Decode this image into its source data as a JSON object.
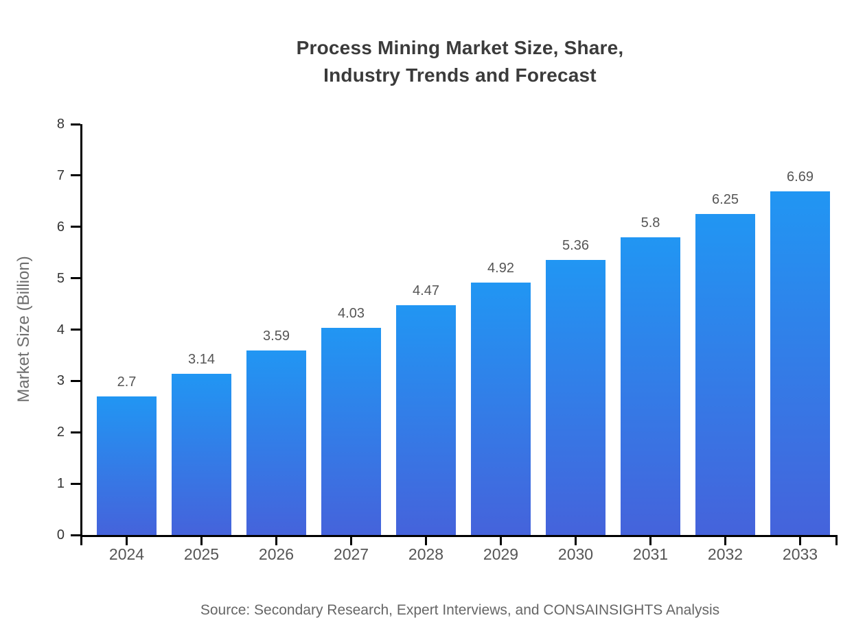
{
  "title": {
    "line1": "Process Mining Market Size, Share,",
    "line2": "Industry Trends and Forecast"
  },
  "source_note": "Source: Secondary Research, Expert Interviews, and CONSAINSIGHTS Analysis",
  "chart_data": {
    "type": "bar",
    "title": "Process Mining Market Size, Share, Industry Trends and Forecast",
    "categories": [
      "2024",
      "2025",
      "2026",
      "2027",
      "2028",
      "2029",
      "2030",
      "2031",
      "2032",
      "2033"
    ],
    "values": [
      2.7,
      3.14,
      3.59,
      4.03,
      4.47,
      4.92,
      5.36,
      5.8,
      6.25,
      6.69
    ],
    "value_labels": [
      "2.7",
      "3.14",
      "3.59",
      "4.03",
      "4.47",
      "4.92",
      "5.36",
      "5.8",
      "6.25",
      "6.69"
    ],
    "xlabel": "",
    "ylabel": "Market Size (Billion)",
    "ylim": [
      0,
      8
    ],
    "yticks": [
      0,
      1,
      2,
      3,
      4,
      5,
      6,
      7,
      8
    ],
    "grid": false,
    "legend": false,
    "bar_gradient_top": "#2196F3",
    "bar_gradient_bottom": "#4563DB",
    "axis_color": "#000000"
  }
}
